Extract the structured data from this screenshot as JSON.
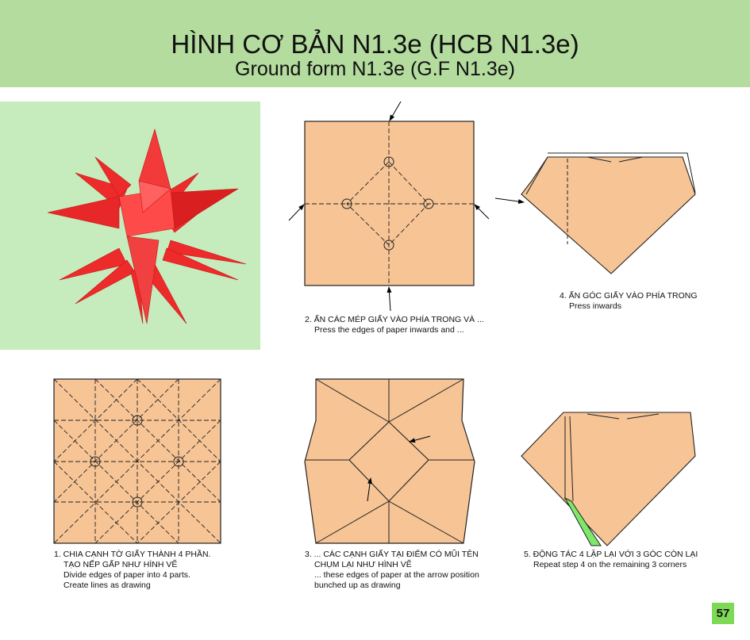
{
  "header": {
    "title": "HÌNH CƠ BẢN N1.3e (HCB N1.3e)",
    "subtitle": "Ground form N1.3e (G.F N1.3e)"
  },
  "colors": {
    "header_bg": "#b4dc9e",
    "paper": "#f6c495",
    "model": "#ee2b2b",
    "photo_bg": "#c6ebbd",
    "accent_green": "#7ed957"
  },
  "steps": [
    {
      "vn1": "1. CHIA CẠNH TỜ GIẤY THÀNH 4 PHẦN.",
      "vn2": "TẠO NẾP GẤP NHƯ HÌNH VẼ",
      "en1": "Divide edges of paper into 4 parts.",
      "en2": "Create lines as drawing"
    },
    {
      "vn1": "2. ẤN CÁC MÉP GIẤY VÀO PHÍA TRONG VÀ ...",
      "en1": "Press the edges of paper inwards and ..."
    },
    {
      "vn1": "3. ... CÁC CẠNH GIẤY TẠI ĐIỂM CÓ MŨI TÊN",
      "vn2": "CHỤM LẠI NHƯ HÌNH VẼ",
      "en1": "... these edges of paper at the arrow position",
      "en2": "bunched up as drawing"
    },
    {
      "vn1": "4. ẤN GÓC GIẤY VÀO PHÍA TRONG",
      "en1": "Press inwards"
    },
    {
      "vn1": "5. ĐỘNG TÁC 4 LẶP LẠI VỚI 3 GÓC CÒN LẠI",
      "en1": "Repeat step 4 on the remaining 3 corners"
    }
  ],
  "page_number": "57"
}
